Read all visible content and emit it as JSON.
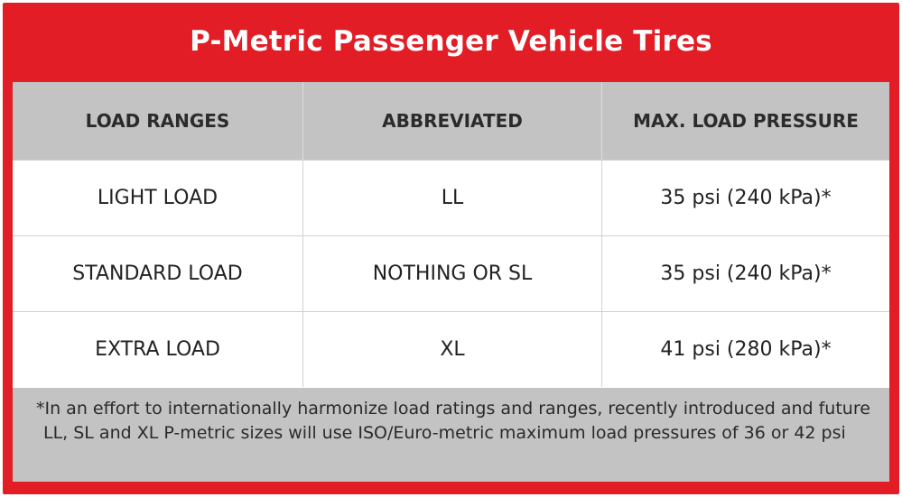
{
  "title": "P-Metric Passenger Vehicle Tires",
  "table": {
    "headers": [
      "LOAD RANGES",
      "ABBREVIATED",
      "MAX. LOAD PRESSURE"
    ],
    "rows": [
      [
        "LIGHT LOAD",
        "LL",
        "35 psi (240 kPa)*"
      ],
      [
        "STANDARD LOAD",
        "NOTHING OR SL",
        "35 psi (240 kPa)*"
      ],
      [
        "EXTRA LOAD",
        "XL",
        "41 psi (280 kPa)*"
      ]
    ]
  },
  "footnote": "*In an effort to internationally harmonize load ratings and ranges, recently introduced and future LL, SL and XL P-metric sizes will use ISO/Euro-metric maximum load pressures of 36 or 42 psi",
  "colors": {
    "frame": "#e21d26",
    "header_bg": "#c3c3c3",
    "footnote_bg": "#c3c3c3",
    "title_text": "#ffffff"
  }
}
